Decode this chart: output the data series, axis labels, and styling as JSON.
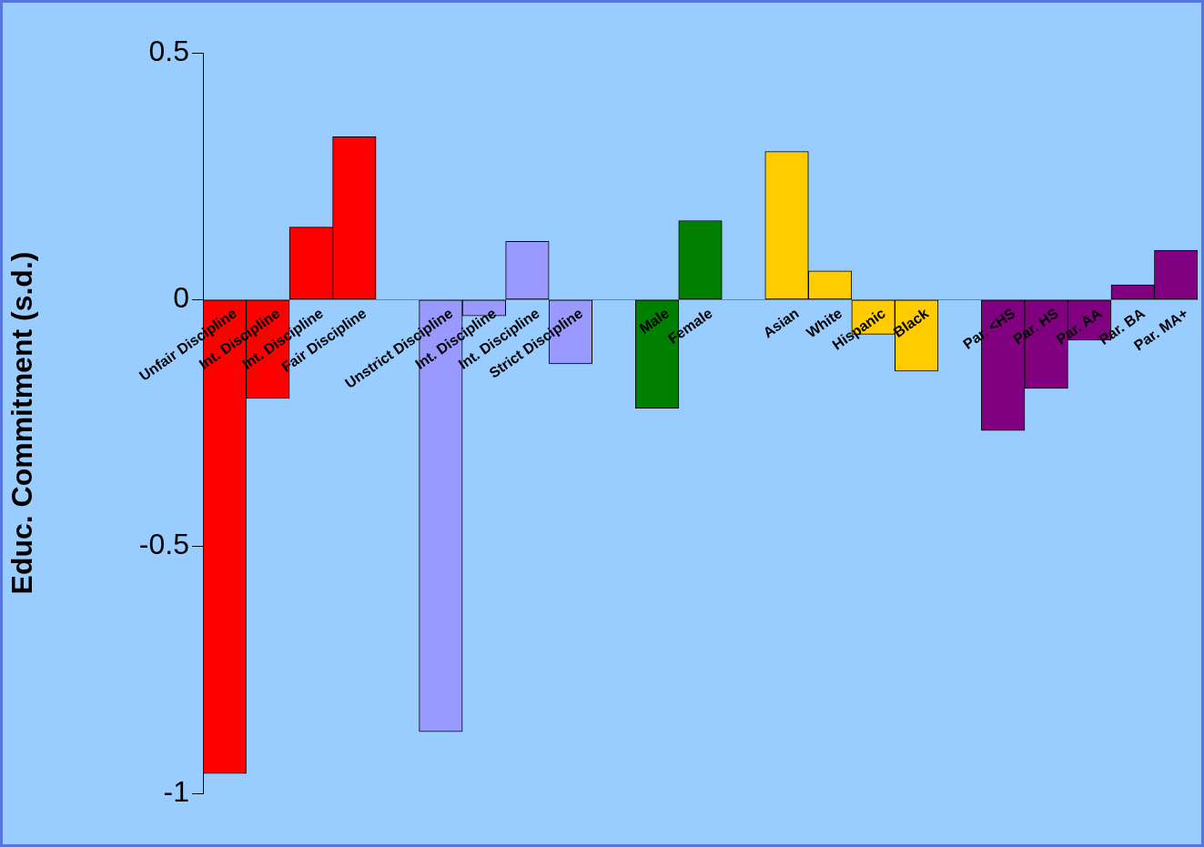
{
  "chart_data": {
    "type": "bar",
    "ylabel": "Educ. Commitment (s.d.)",
    "categories": [
      "Unfair Discipline",
      "Int. Discipline",
      "Int. Discipline",
      "Fair Discipline",
      null,
      "Unstrict Discipline",
      "Int. Discipline",
      "Int. Discipline",
      "Strict Discipline",
      null,
      "Male",
      "Female",
      null,
      "Asian",
      "White",
      "Hispanic",
      "Black",
      null,
      "Par. <HS",
      "Par. HS",
      "Par. AA",
      "Par. BA",
      "Par. MA+"
    ],
    "values": [
      -0.96,
      -0.2,
      0.147,
      0.33,
      null,
      -0.875,
      -0.033,
      0.118,
      -0.13,
      null,
      -0.22,
      0.16,
      null,
      0.3,
      0.058,
      -0.07,
      -0.145,
      null,
      -0.265,
      -0.18,
      -0.082,
      0.03,
      0.1
    ],
    "colors": [
      "#ff0000",
      "#ff0000",
      "#ff0000",
      "#ff0000",
      null,
      "#9999ff",
      "#9999ff",
      "#9999ff",
      "#9999ff",
      null,
      "#008000",
      "#008000",
      null,
      "#ffcc00",
      "#ffcc00",
      "#ffcc00",
      "#ffcc00",
      null,
      "#800080",
      "#800080",
      "#800080",
      "#800080",
      "#800080"
    ],
    "ylim": [
      -1,
      0.5
    ],
    "yticks": [
      -1,
      -0.5,
      0,
      0.5
    ]
  }
}
